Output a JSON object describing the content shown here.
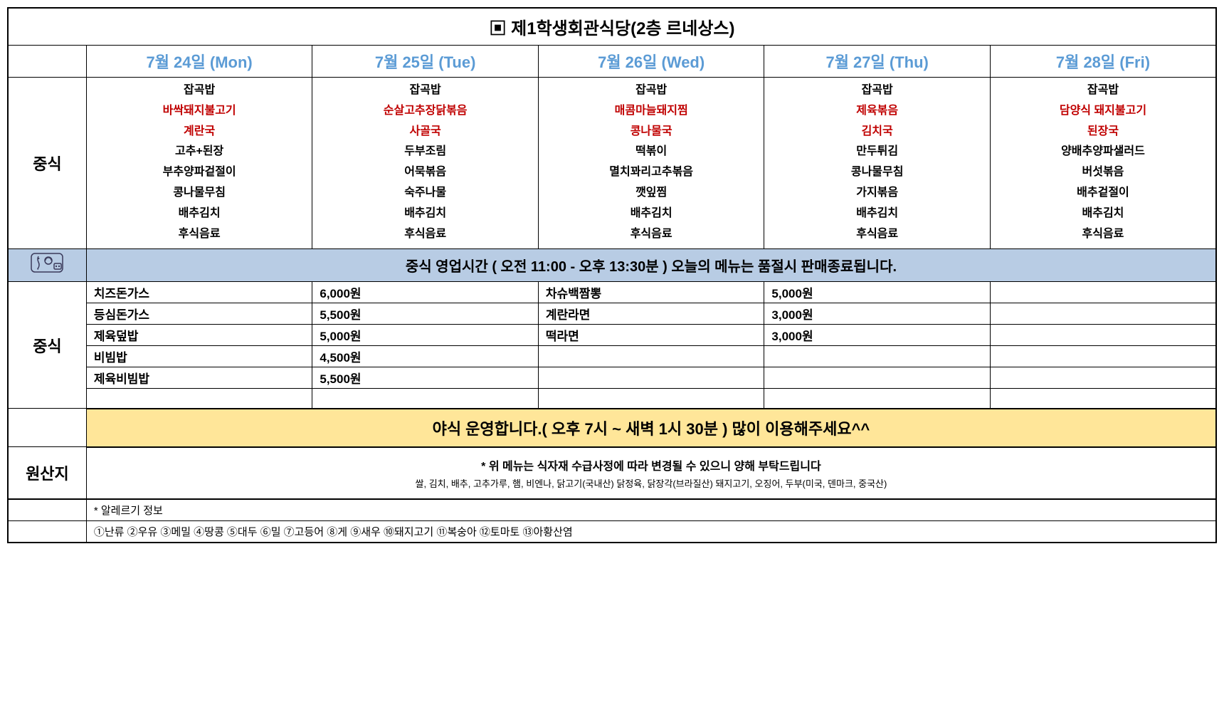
{
  "title": "▣ 제1학생회관식당(2층 르네상스)",
  "days": [
    {
      "label": "7월 24일 (Mon)"
    },
    {
      "label": "7월 25일 (Tue)"
    },
    {
      "label": "7월 26일 (Wed)"
    },
    {
      "label": "7월 27일 (Thu)"
    },
    {
      "label": "7월 28일 (Fri)"
    }
  ],
  "lunch_label": "중식",
  "lunch_menus": [
    [
      {
        "text": "잡곡밥",
        "red": false
      },
      {
        "text": "바싹돼지불고기",
        "red": true
      },
      {
        "text": "계란국",
        "red": true
      },
      {
        "text": "고추+된장",
        "red": false
      },
      {
        "text": "부추양파겉절이",
        "red": false
      },
      {
        "text": "콩나물무침",
        "red": false
      },
      {
        "text": "배추김치",
        "red": false
      },
      {
        "text": "후식음료",
        "red": false
      }
    ],
    [
      {
        "text": "잡곡밥",
        "red": false
      },
      {
        "text": "순살고추장닭볶음",
        "red": true
      },
      {
        "text": "사골국",
        "red": true
      },
      {
        "text": "두부조림",
        "red": false
      },
      {
        "text": "어묵볶음",
        "red": false
      },
      {
        "text": "숙주나물",
        "red": false
      },
      {
        "text": "배추김치",
        "red": false
      },
      {
        "text": "후식음료",
        "red": false
      }
    ],
    [
      {
        "text": "잡곡밥",
        "red": false
      },
      {
        "text": "매콤마늘돼지찜",
        "red": true
      },
      {
        "text": "콩나물국",
        "red": true
      },
      {
        "text": "떡볶이",
        "red": false
      },
      {
        "text": "멸치꽈리고추볶음",
        "red": false
      },
      {
        "text": "깻잎찜",
        "red": false
      },
      {
        "text": "배추김치",
        "red": false
      },
      {
        "text": "후식음료",
        "red": false
      }
    ],
    [
      {
        "text": "잡곡밥",
        "red": false
      },
      {
        "text": "제육볶음",
        "red": true
      },
      {
        "text": "김치국",
        "red": true
      },
      {
        "text": "만두튀김",
        "red": false
      },
      {
        "text": "콩나물무침",
        "red": false
      },
      {
        "text": "가지볶음",
        "red": false
      },
      {
        "text": "배추김치",
        "red": false
      },
      {
        "text": "후식음료",
        "red": false
      }
    ],
    [
      {
        "text": "잡곡밥",
        "red": false
      },
      {
        "text": "담양식 돼지불고기",
        "red": true
      },
      {
        "text": "된장국",
        "red": true
      },
      {
        "text": "양배추양파샐러드",
        "red": false
      },
      {
        "text": "버섯볶음",
        "red": false
      },
      {
        "text": "배추겉절이",
        "red": false
      },
      {
        "text": "배추김치",
        "red": false
      },
      {
        "text": "후식음료",
        "red": false
      }
    ]
  ],
  "hours_text": "중식 영업시간 ( 오전 11:00 - 오후 13:30분 ) 오늘의 메뉴는 품절시 판매종료됩니다.",
  "price_label": "중식",
  "price_rows": [
    {
      "name1": "치즈돈가스",
      "price1": "6,000원",
      "name2": "차슈백짬뽕",
      "price2": "5,000원"
    },
    {
      "name1": "등심돈가스",
      "price1": "5,500원",
      "name2": "계란라면",
      "price2": "3,000원"
    },
    {
      "name1": "제육덮밥",
      "price1": "5,000원",
      "name2": "떡라면",
      "price2": "3,000원"
    },
    {
      "name1": "비빔밥",
      "price1": "4,500원",
      "name2": "",
      "price2": ""
    },
    {
      "name1": "제육비빔밥",
      "price1": "5,500원",
      "name2": "",
      "price2": ""
    },
    {
      "name1": "",
      "price1": "",
      "name2": "",
      "price2": ""
    }
  ],
  "night_text": "야식 운영합니다.( 오후 7시 ~ 새벽 1시 30분 ) 많이 이용해주세요^^",
  "origin_label": "원산지",
  "origin_text1": "* 위 메뉴는 식자재 수급사정에 따라 변경될 수 있으니 양해 부탁드립니다",
  "origin_text2": "쌀, 김치, 배추, 고추가루, 햄, 비엔나, 닭고기(국내산) 닭정육, 닭장각(브라질산) 돼지고기, 오징어, 두부(미국, 덴마크, 중국산)",
  "allergy_label": "* 알레르기 정보",
  "allergy_list": "①난류 ②우유 ③메밀 ④땅콩 ⑤대두 ⑥밀 ⑦고등어 ⑧게 ⑨새우 ⑩돼지고기 ⑪복숭아 ⑫토마토 ⑬아황산염",
  "colors": {
    "header_blue": "#5b9bd5",
    "red": "#c00000",
    "banner_blue": "#b8cce4",
    "banner_yellow": "#ffe699"
  }
}
